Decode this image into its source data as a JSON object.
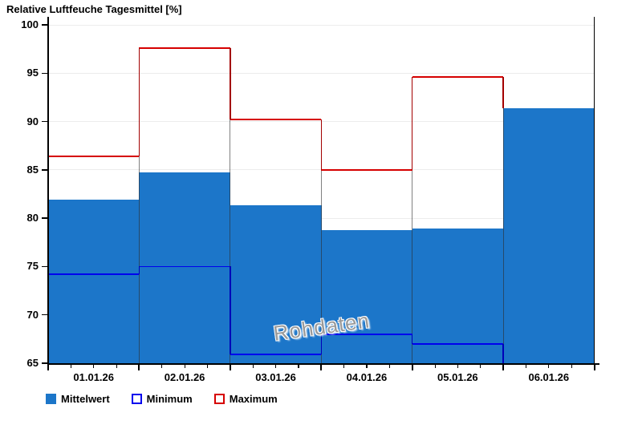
{
  "title": "Relative Luftfeuche Tagesmittel [%]",
  "watermark": "Rohdaten",
  "legend": {
    "items": [
      {
        "label": "Mittelwert",
        "swatch": "filled",
        "color": "#1c76c9"
      },
      {
        "label": "Minimum",
        "swatch": "outline",
        "color": "#0000ee"
      },
      {
        "label": "Maximum",
        "swatch": "outline",
        "color": "#d60000"
      }
    ]
  },
  "chart_data": {
    "type": "bar",
    "title": "Relative Luftfeuche Tagesmittel [%]",
    "categories": [
      "01.01.26",
      "02.01.26",
      "03.01.26",
      "04.01.26",
      "05.01.26",
      "06.01.26"
    ],
    "series": [
      {
        "name": "Mittelwert",
        "render": "bar",
        "color": "#1c76c9",
        "values": [
          81.9,
          84.7,
          81.3,
          78.8,
          78.9,
          91.4
        ]
      },
      {
        "name": "Minimum",
        "render": "step",
        "color": "#0000ee",
        "values": [
          74.2,
          75.0,
          65.9,
          68.0,
          67.0,
          null
        ]
      },
      {
        "name": "Maximum",
        "render": "step",
        "color": "#d60000",
        "values": [
          86.4,
          97.6,
          90.2,
          85.0,
          94.6,
          null
        ]
      }
    ],
    "ylabel": "",
    "xlabel": "",
    "ylim": [
      65,
      100
    ],
    "yticks": [
      65,
      70,
      75,
      80,
      85,
      90,
      95,
      100
    ],
    "x_minor_ticks_per_day": 3,
    "grid": "horizontal",
    "legend_position": "bottom",
    "annotations": [
      "Rohdaten"
    ]
  }
}
